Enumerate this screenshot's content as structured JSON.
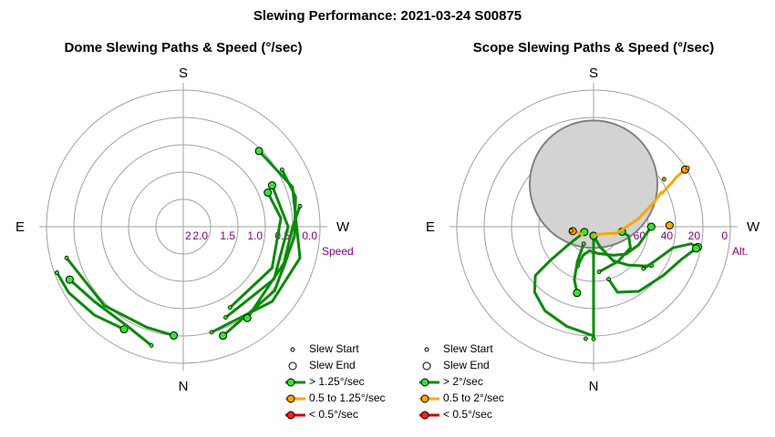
{
  "title": "Slewing Performance: 2021-03-24 S00875",
  "colors": {
    "grid": "#a0a0a0",
    "tick_label": "#800080",
    "fast": "#0a8a0a",
    "fast_marker": "#2ee82e",
    "medium": "#ffa500",
    "medium_marker": "#ffa500",
    "slow": "#cc0000",
    "slow_marker": "#ff2020",
    "sun_fill": "#d3d3d3",
    "sun_edge": "#808080"
  },
  "chart_data": [
    {
      "type": "polar",
      "title": "Dome Slewing Paths & Speed (°/sec)",
      "cardinals": {
        "top": "S",
        "left": "E",
        "right": "W",
        "bottom": "N"
      },
      "radial_axis": {
        "label": "Speed",
        "ticks": [
          "2.0",
          "1.5",
          "1.0",
          "0.5",
          "0.0"
        ],
        "partial_tick": "2"
      },
      "legend": [
        {
          "label": "Slew Start",
          "marker": "start"
        },
        {
          "label": "Slew End",
          "marker": "end"
        },
        {
          "label": "> 1.25°/sec",
          "marker": "fast"
        },
        {
          "label": "0.5 to 1.25°/sec",
          "marker": "medium"
        },
        {
          "label": "< 0.5°/sec",
          "marker": "slow"
        }
      ],
      "paths": [
        {
          "speed": "fast",
          "points": [
            [
              150,
              2.6
            ],
            [
              135,
              2.75
            ],
            [
              120,
              2.9
            ],
            [
              110,
              2.95
            ]
          ],
          "start": [
            110,
            2.95
          ],
          "end": [
            150,
            2.6
          ]
        },
        {
          "speed": "fast",
          "points": [
            [
              165,
              2.7
            ],
            [
              150,
              2.5
            ],
            [
              130,
              2.55
            ],
            [
              115,
              2.75
            ]
          ],
          "start": [
            165,
            2.7
          ],
          "end": [
            115,
            2.75
          ]
        },
        {
          "speed": "fast",
          "points": [
            [
              105,
              2.65
            ],
            [
              135,
              2.45
            ],
            [
              160,
              2.35
            ],
            [
              175,
              2.4
            ]
          ],
          "start": [
            105,
            2.65
          ],
          "end": [
            175,
            2.4
          ]
        },
        {
          "speed": "fast",
          "points": [
            [
              195,
              2.4
            ],
            [
              230,
              2.55
            ],
            [
              255,
              2.65
            ],
            [
              290,
              2.55
            ],
            [
              315,
              2.35
            ]
          ],
          "start": [
            195,
            2.4
          ],
          "end": [
            315,
            2.35
          ]
        },
        {
          "speed": "fast",
          "points": [
            [
              200,
              2.55
            ],
            [
              235,
              2.45
            ],
            [
              265,
              2.45
            ],
            [
              285,
              2.55
            ],
            [
              300,
              2.5
            ]
          ],
          "start": [
            300,
            2.5
          ],
          "end": [
            200,
            2.55
          ]
        },
        {
          "speed": "fast",
          "points": [
            [
              205,
              2.2
            ],
            [
              240,
              2.3
            ],
            [
              270,
              2.3
            ],
            [
              295,
              2.15
            ]
          ],
          "start": [
            205,
            2.2
          ],
          "end": [
            295,
            2.15
          ]
        },
        {
          "speed": "fast",
          "points": [
            [
              210,
              2.05
            ],
            [
              245,
              2.15
            ],
            [
              275,
              2.15
            ],
            [
              292,
              2.0
            ]
          ],
          "start": [
            210,
            2.05
          ],
          "end": [
            292,
            2.0
          ]
        },
        {
          "speed": "fast",
          "points": [
            [
              215,
              2.45
            ],
            [
              250,
              2.35
            ],
            [
              270,
              2.4
            ],
            [
              280,
              2.6
            ]
          ],
          "start": [
            280,
            2.6
          ],
          "end": [
            215,
            2.45
          ]
        }
      ]
    },
    {
      "type": "polar",
      "title": "Scope Slewing Paths & Speed (°/sec)",
      "cardinals": {
        "top": "S",
        "left": "E",
        "right": "W",
        "bottom": "N"
      },
      "radial_axis": {
        "label": "Alt.",
        "ticks": [
          "80",
          "60",
          "40",
          "20",
          "0"
        ]
      },
      "sun": {
        "az": 0,
        "alt": 62,
        "radius_deg": 14
      },
      "legend": [
        {
          "label": "Slew Start",
          "marker": "start"
        },
        {
          "label": "Slew End",
          "marker": "end"
        },
        {
          "label": "> 2°/sec",
          "marker": "fast"
        },
        {
          "label": "0.5 to 2°/sec",
          "marker": "medium"
        },
        {
          "label": "< 0.5°/sec",
          "marker": "slow"
        }
      ],
      "paths": [
        {
          "speed": "fast",
          "points": [
            [
              180,
              84
            ],
            [
              180,
              60
            ],
            [
              180,
              18
            ]
          ],
          "start": [
            180,
            16
          ],
          "end": [
            180,
            84
          ]
        },
        {
          "speed": "fast",
          "points": [
            [
              180,
              18
            ],
            [
              165,
              22
            ],
            [
              150,
              26
            ],
            [
              138,
              32
            ],
            [
              130,
              40
            ],
            [
              128,
              54
            ],
            [
              126,
              68
            ],
            [
              120,
              83
            ]
          ],
          "start": [
            176,
            16
          ],
          "end": [
            120,
            83
          ]
        },
        {
          "speed": "fast",
          "points": [
            [
              180,
              84
            ],
            [
              198,
              76
            ],
            [
              210,
              64
            ],
            [
              222,
              56
            ],
            [
              232,
              48
            ],
            [
              236,
              44
            ]
          ],
          "start": [
            236,
            44
          ],
          "end": [
            180,
            84
          ]
        },
        {
          "speed": "fast",
          "points": [
            [
              230,
              47
            ],
            [
              240,
              44
            ],
            [
              255,
              36
            ],
            [
              260,
              25
            ],
            [
              259,
              20
            ]
          ],
          "start": [
            230,
            47
          ],
          "end": [
            259,
            20
          ]
        },
        {
          "speed": "fast",
          "points": [
            [
              196,
              54
            ],
            [
              200,
              44
            ],
            [
              215,
              38
            ],
            [
              235,
              34
            ],
            [
              250,
              28
            ],
            [
              258,
              21
            ]
          ],
          "start": [
            196,
            54
          ],
          "end": [
            258,
            21
          ]
        },
        {
          "speed": "fast",
          "points": [
            [
              158,
              62
            ],
            [
              160,
              70
            ],
            [
              170,
              74
            ],
            [
              190,
              72
            ],
            [
              215,
              67
            ],
            [
              230,
              62
            ],
            [
              248,
              58
            ],
            [
              270,
              52
            ]
          ],
          "start": [
            158,
            62
          ],
          "end": [
            270,
            52
          ]
        },
        {
          "speed": "fast",
          "points": [
            [
              187,
              60
            ],
            [
              215,
              62
            ],
            [
              240,
              62
            ],
            [
              255,
              66
            ],
            [
              260,
              71
            ]
          ],
          "start": [
            187,
            60
          ],
          "end": [
            260,
            71
          ]
        },
        {
          "speed": "fast",
          "points": [
            [
              150,
              77
            ],
            [
              155,
              65
            ],
            [
              160,
              53
            ],
            [
              166,
              45
            ]
          ],
          "start": [
            150,
            77
          ],
          "end": [
            166,
            45
          ]
        },
        {
          "speed": "medium",
          "points": [
            [
              102,
              76
            ],
            [
              110,
              79
            ],
            [
              125,
              81
            ]
          ],
          "start": [
            100,
            75
          ],
          "end": [
            102,
            76
          ]
        },
        {
          "speed": "medium",
          "points": [
            [
              180,
              84
            ],
            [
              215,
              84
            ],
            [
              255,
              74
            ],
            [
              280,
              60
            ],
            [
              292,
              47
            ],
            [
              297,
              40
            ]
          ],
          "start": [
            304,
            34
          ],
          "end": [
            271,
            40
          ]
        },
        {
          "speed": "medium",
          "points": [
            [
              296,
              40
            ],
            [
              299,
              32
            ],
            [
              301,
              26
            ],
            [
              302,
              19
            ]
          ],
          "start": [
            302,
            17
          ],
          "end": [
            302,
            19
          ]
        }
      ]
    }
  ]
}
